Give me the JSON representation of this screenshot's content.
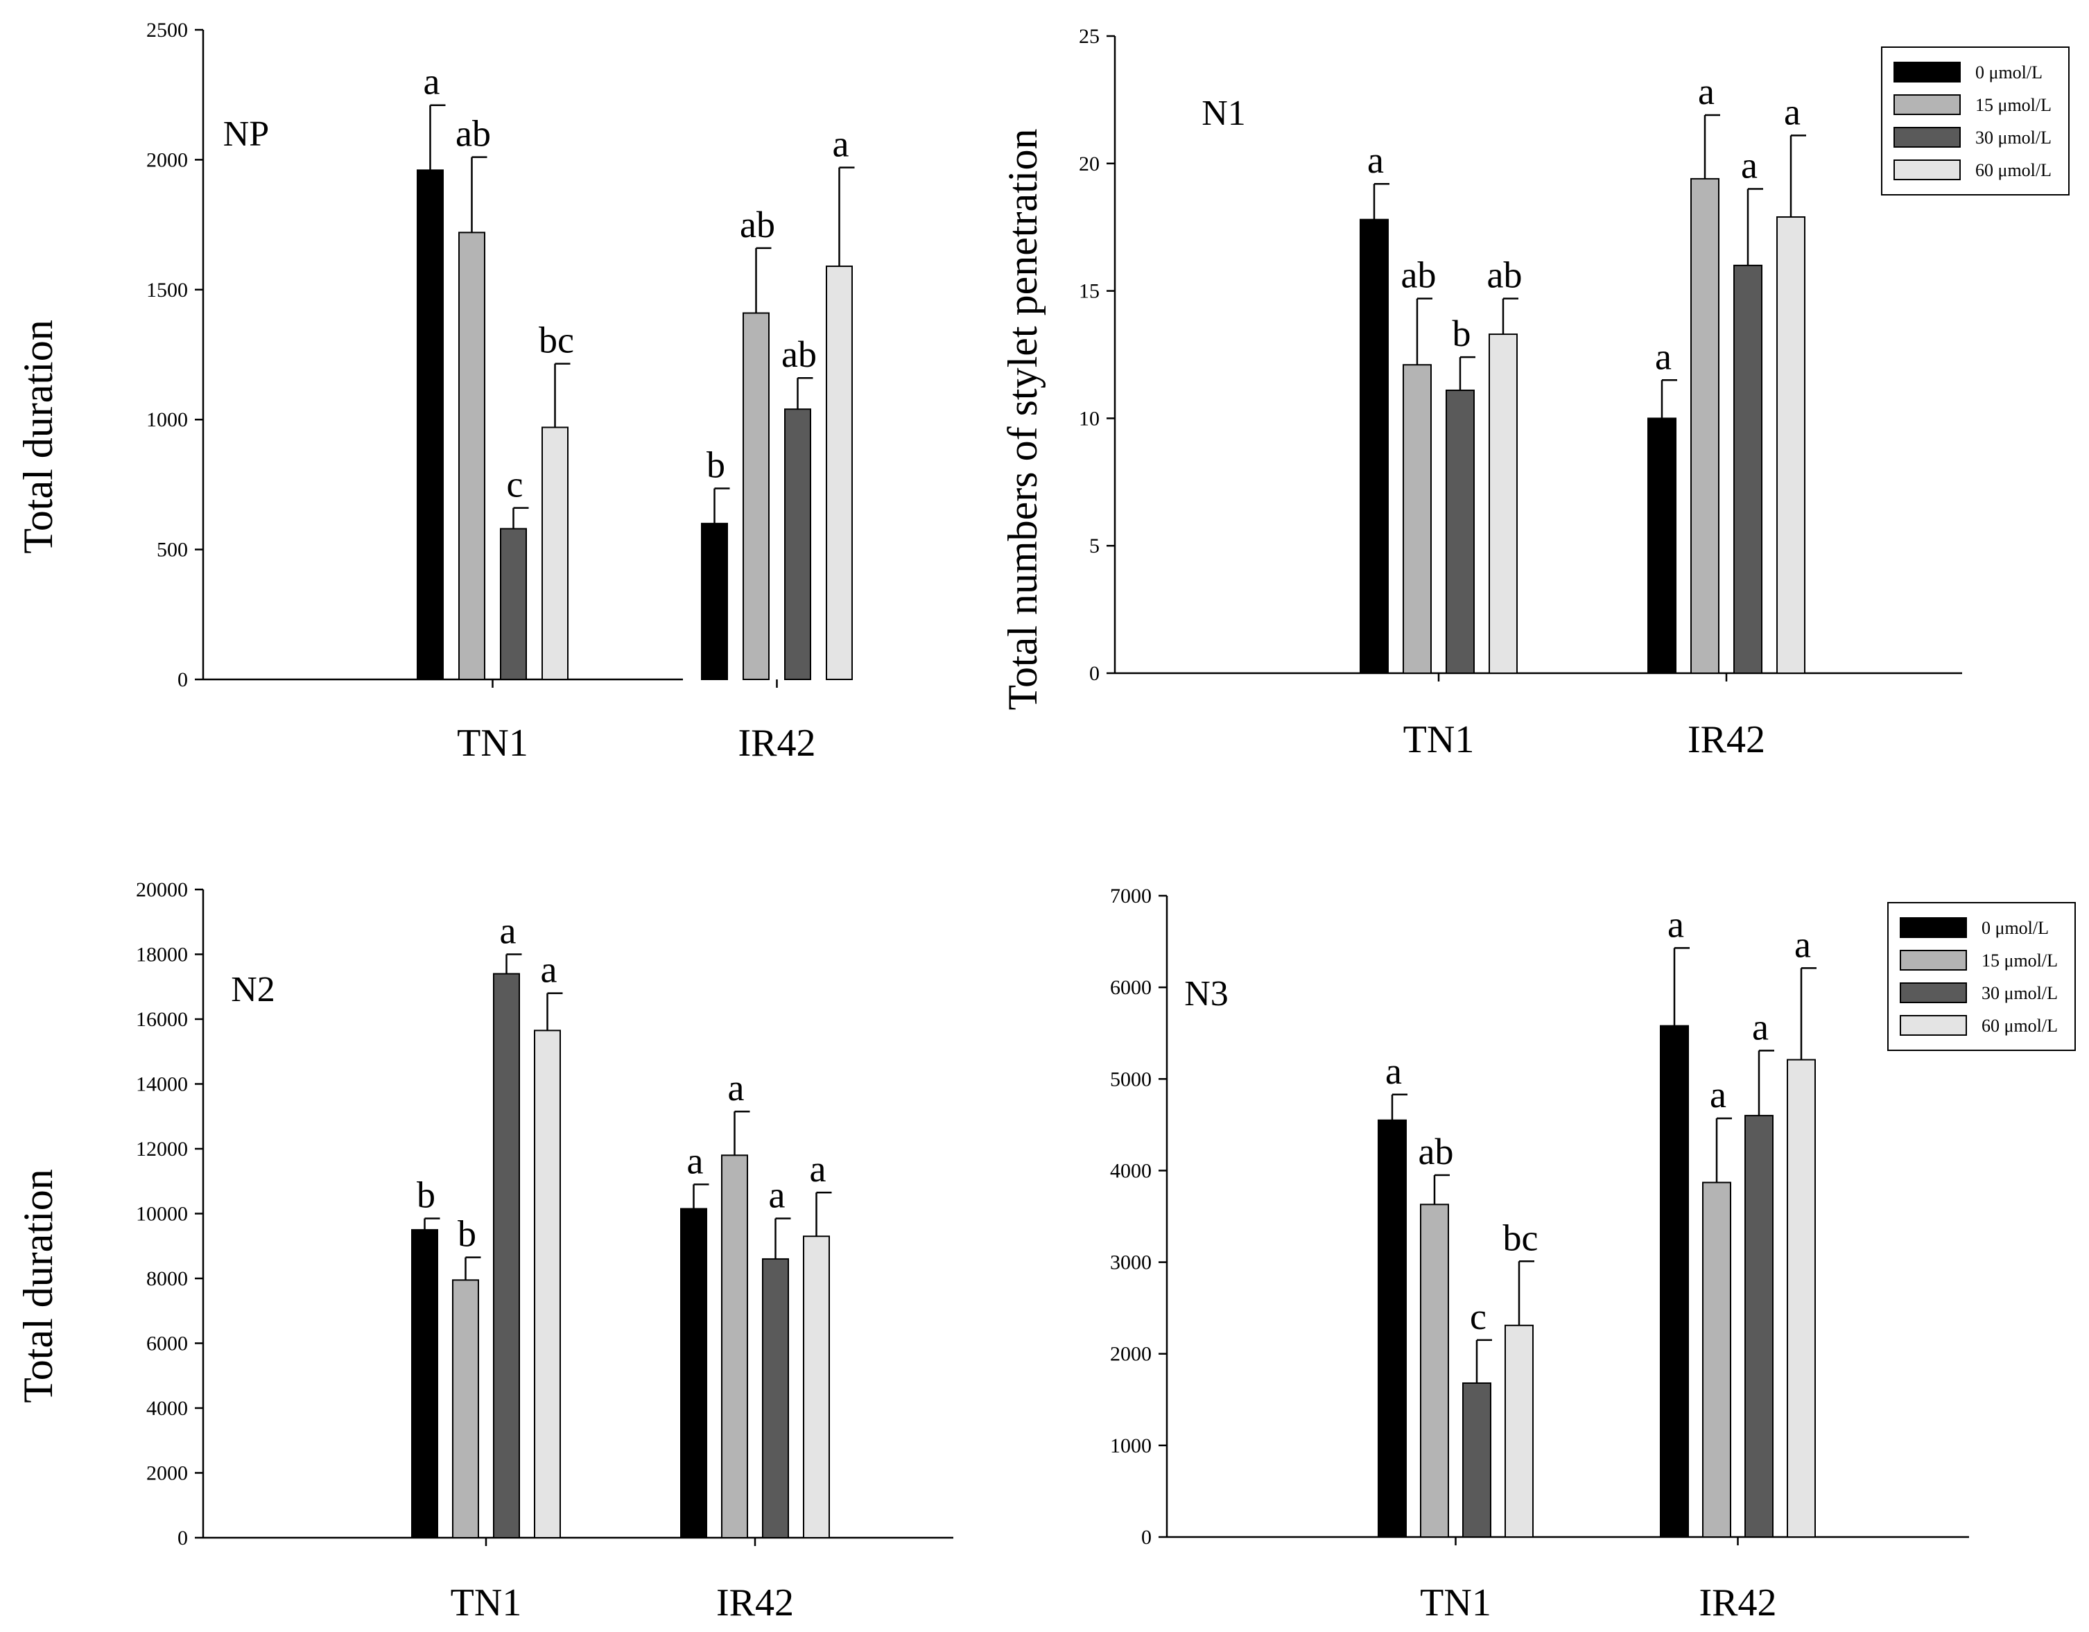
{
  "figure": {
    "legend_title": "",
    "series_names": [
      "0 μmol/L",
      "15 μmol/L",
      "30 μmol/L",
      "60 μmol/L"
    ]
  },
  "colors": {
    "series": [
      "#000000",
      "#b4b4b4",
      "#5a5a5a",
      "#e4e4e4"
    ],
    "axis": "#000000"
  },
  "chart_data": [
    {
      "type": "bar",
      "panel_title": "NP",
      "ylabel": "Total duration",
      "xlabel": "",
      "categories": [
        "TN1",
        "IR42"
      ],
      "ylim": [
        0,
        2500
      ],
      "yticks": [
        0,
        500,
        1000,
        1500,
        2000,
        2500
      ],
      "series": [
        {
          "name": "0 μmol/L",
          "values": [
            1960,
            600
          ],
          "errors": [
            250,
            135
          ],
          "labels": [
            "a",
            "b"
          ]
        },
        {
          "name": "15 μmol/L",
          "values": [
            1720,
            1410
          ],
          "errors": [
            290,
            250
          ],
          "labels": [
            "ab",
            "ab"
          ]
        },
        {
          "name": "30 μmol/L",
          "values": [
            580,
            1040
          ],
          "errors": [
            80,
            120
          ],
          "labels": [
            "c",
            "ab"
          ]
        },
        {
          "name": "60 μmol/L",
          "values": [
            970,
            1590
          ],
          "errors": [
            245,
            380
          ],
          "labels": [
            "bc",
            "a"
          ]
        }
      ],
      "legend": false
    },
    {
      "type": "bar",
      "panel_title": "N1",
      "ylabel": "Total numbers of stylet penetration",
      "xlabel": "",
      "categories": [
        "TN1",
        "IR42"
      ],
      "ylim": [
        0,
        25
      ],
      "yticks": [
        0,
        5,
        10,
        15,
        20,
        25
      ],
      "series": [
        {
          "name": "0 μmol/L",
          "values": [
            17.8,
            10.0
          ],
          "errors": [
            1.4,
            1.5
          ],
          "labels": [
            "a",
            "a"
          ]
        },
        {
          "name": "15 μmol/L",
          "values": [
            12.1,
            19.4
          ],
          "errors": [
            2.6,
            2.5
          ],
          "labels": [
            "ab",
            "a"
          ]
        },
        {
          "name": "30 μmol/L",
          "values": [
            11.1,
            16.0
          ],
          "errors": [
            1.3,
            3.0
          ],
          "labels": [
            "b",
            "a"
          ]
        },
        {
          "name": "60 μmol/L",
          "values": [
            13.3,
            17.9
          ],
          "errors": [
            1.4,
            3.2
          ],
          "labels": [
            "ab",
            "a"
          ]
        }
      ],
      "legend": true
    },
    {
      "type": "bar",
      "panel_title": "N2",
      "ylabel": "Total duration",
      "xlabel": "",
      "categories": [
        "TN1",
        "IR42"
      ],
      "ylim": [
        0,
        20000
      ],
      "yticks": [
        0,
        2000,
        4000,
        6000,
        8000,
        10000,
        12000,
        14000,
        16000,
        18000,
        20000
      ],
      "series": [
        {
          "name": "0 μmol/L",
          "values": [
            9500,
            10150
          ],
          "errors": [
            350,
            750
          ],
          "labels": [
            "b",
            "a"
          ]
        },
        {
          "name": "15 μmol/L",
          "values": [
            7950,
            11800
          ],
          "errors": [
            700,
            1350
          ],
          "labels": [
            "b",
            "a"
          ]
        },
        {
          "name": "30 μmol/L",
          "values": [
            17400,
            8600
          ],
          "errors": [
            600,
            1250
          ],
          "labels": [
            "a",
            "a"
          ]
        },
        {
          "name": "60 μmol/L",
          "values": [
            15650,
            9300
          ],
          "errors": [
            1150,
            1350
          ],
          "labels": [
            "a",
            "a"
          ]
        }
      ],
      "legend": false
    },
    {
      "type": "bar",
      "panel_title": "N3",
      "ylabel": "",
      "xlabel": "",
      "categories": [
        "TN1",
        "IR42"
      ],
      "ylim": [
        0,
        7000
      ],
      "yticks": [
        0,
        1000,
        2000,
        3000,
        4000,
        5000,
        6000,
        7000
      ],
      "series": [
        {
          "name": "0 μmol/L",
          "values": [
            4550,
            5580
          ],
          "errors": [
            280,
            850
          ],
          "labels": [
            "a",
            "a"
          ]
        },
        {
          "name": "15 μmol/L",
          "values": [
            3630,
            3870
          ],
          "errors": [
            320,
            700
          ],
          "labels": [
            "ab",
            "a"
          ]
        },
        {
          "name": "30 μmol/L",
          "values": [
            1680,
            4600
          ],
          "errors": [
            470,
            710
          ],
          "labels": [
            "c",
            "a"
          ]
        },
        {
          "name": "60 μmol/L",
          "values": [
            2310,
            5210
          ],
          "errors": [
            700,
            1000
          ],
          "labels": [
            "bc",
            "a"
          ]
        }
      ],
      "legend": true
    }
  ]
}
